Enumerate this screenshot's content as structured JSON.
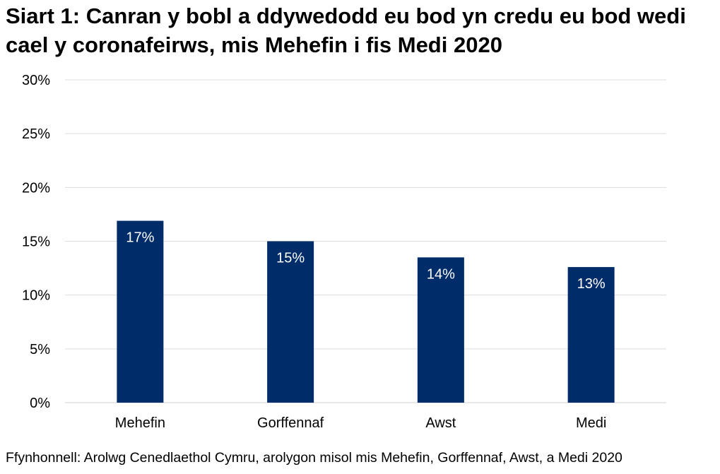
{
  "chart_data": {
    "type": "bar",
    "title": "Siart 1: Canran y bobl a ddywedodd eu bod yn credu eu bod wedi cael y coronafeirws, mis Mehefin i fis Medi 2020",
    "categories": [
      "Mehefin",
      "Gorffennaf",
      "Awst",
      "Medi"
    ],
    "values": [
      16.9,
      15.0,
      13.5,
      12.6
    ],
    "data_labels": [
      "17%",
      "15%",
      "14%",
      "13%"
    ],
    "xlabel": "",
    "ylabel": "",
    "ylim": [
      0,
      30
    ],
    "yticks": [
      0,
      5,
      10,
      15,
      20,
      25,
      30
    ],
    "ytick_labels": [
      "0%",
      "5%",
      "10%",
      "15%",
      "20%",
      "25%",
      "30%"
    ],
    "grid": true,
    "legend": "none",
    "bar_color": "#002D6A"
  },
  "source": "Ffynhonnell: Arolwg Cenedlaethol Cymru, arolygon misol mis Mehefin, Gorffennaf, Awst, a Medi 2020"
}
